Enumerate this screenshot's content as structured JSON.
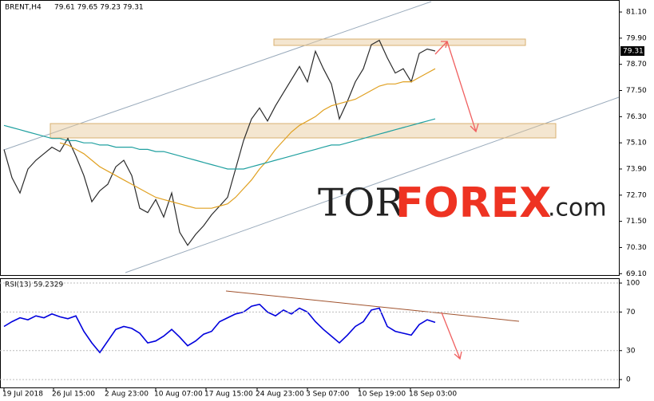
{
  "chart_data": [
    {
      "type": "line",
      "title": "BRENT,H4",
      "subtitle": "79.61 79.65 79.23 79.31",
      "price_label": "79.31",
      "watermark": [
        "TOR",
        "FOREX",
        ".com"
      ],
      "x": [
        0,
        1,
        2,
        3,
        4,
        5,
        6,
        7,
        8,
        9,
        10,
        11,
        12,
        13,
        14,
        15,
        16,
        17,
        18,
        19,
        20,
        21,
        22,
        23,
        24,
        25,
        26,
        27,
        28,
        29,
        30,
        31,
        32,
        33,
        34,
        35,
        36,
        37,
        38,
        39,
        40,
        41,
        42,
        43,
        44,
        45,
        46,
        47,
        48,
        49,
        50,
        51,
        52,
        53,
        54
      ],
      "xlim": [
        -0.5,
        77
      ],
      "ylim": [
        69.0,
        81.65
      ],
      "yticks": [
        {
          "value": 81.1,
          "label": "81.10"
        },
        {
          "value": 79.9,
          "label": "79.90"
        },
        {
          "value": 78.7,
          "label": "78.70"
        },
        {
          "value": 77.5,
          "label": "77.50"
        },
        {
          "value": 76.3,
          "label": "76.30"
        },
        {
          "value": 75.1,
          "label": "75.10"
        },
        {
          "value": 73.9,
          "label": "73.90"
        },
        {
          "value": 72.7,
          "label": "72.70"
        },
        {
          "value": 71.5,
          "label": "71.50"
        },
        {
          "value": 70.3,
          "label": "70.30"
        },
        {
          "value": 69.1,
          "label": "69.10"
        }
      ],
      "series": [
        {
          "color": "#2a2a2a",
          "values": [
            74.8,
            73.5,
            72.8,
            73.9,
            74.3,
            74.6,
            74.9,
            74.7,
            75.3,
            74.5,
            73.6,
            72.4,
            72.9,
            73.2,
            74.0,
            74.3,
            73.6,
            72.1,
            71.9,
            72.5,
            71.7,
            72.8,
            71.0,
            70.4,
            70.9,
            71.3,
            71.8,
            72.2,
            72.6,
            73.9,
            75.2,
            76.2,
            76.7,
            76.1,
            76.8,
            77.4,
            78.0,
            78.6,
            77.9,
            79.3,
            78.5,
            77.8,
            76.2,
            77.0,
            77.9,
            78.5,
            79.6,
            79.8,
            79.0,
            78.3,
            78.5,
            77.9,
            79.2,
            79.4,
            79.31
          ]
        },
        {
          "color": "#e0a020",
          "values": [
            null,
            null,
            null,
            null,
            null,
            null,
            null,
            75.1,
            75.0,
            74.8,
            74.6,
            74.3,
            74.0,
            73.8,
            73.6,
            73.4,
            73.2,
            73.0,
            72.8,
            72.6,
            72.5,
            72.4,
            72.3,
            72.2,
            72.1,
            72.1,
            72.1,
            72.2,
            72.3,
            72.6,
            73.0,
            73.4,
            73.9,
            74.3,
            74.8,
            75.2,
            75.6,
            75.9,
            76.1,
            76.3,
            76.6,
            76.8,
            76.9,
            77.0,
            77.1,
            77.3,
            77.5,
            77.7,
            77.8,
            77.8,
            77.9,
            77.9,
            78.1,
            78.3,
            78.5
          ]
        },
        {
          "color": "#20a0a0",
          "values": [
            75.9,
            75.8,
            75.7,
            75.6,
            75.5,
            75.4,
            75.3,
            75.3,
            75.2,
            75.2,
            75.1,
            75.1,
            75.0,
            75.0,
            74.9,
            74.9,
            74.9,
            74.8,
            74.8,
            74.7,
            74.7,
            74.6,
            74.5,
            74.4,
            74.3,
            74.2,
            74.1,
            74.0,
            73.9,
            73.9,
            73.9,
            74.0,
            74.1,
            74.2,
            74.3,
            74.4,
            74.5,
            74.6,
            74.7,
            74.8,
            74.9,
            75.0,
            75.0,
            75.1,
            75.2,
            75.3,
            75.4,
            75.5,
            75.6,
            75.7,
            75.8,
            75.9,
            76.0,
            76.1,
            76.2
          ]
        }
      ]
    },
    {
      "type": "line",
      "title": "RSI(13) 59.2329",
      "x": [
        0,
        1,
        2,
        3,
        4,
        5,
        6,
        7,
        8,
        9,
        10,
        11,
        12,
        13,
        14,
        15,
        16,
        17,
        18,
        19,
        20,
        21,
        22,
        23,
        24,
        25,
        26,
        27,
        28,
        29,
        30,
        31,
        32,
        33,
        34,
        35,
        36,
        37,
        38,
        39,
        40,
        41,
        42,
        43,
        44,
        45,
        46,
        47,
        48,
        49,
        50,
        51,
        52,
        53,
        54
      ],
      "xlim": [
        -0.5,
        77
      ],
      "ylim": [
        -9,
        105
      ],
      "yticks": [
        100,
        70,
        30,
        0
      ],
      "xticks": [
        {
          "value": 0,
          "label": "19 Jul 2018"
        },
        {
          "value": 6.2,
          "label": "26 Jul 15:00"
        },
        {
          "value": 12.8,
          "label": "2 Aug 23:00"
        },
        {
          "value": 19,
          "label": "10 Aug 07:00"
        },
        {
          "value": 25.3,
          "label": "17 Aug 15:00"
        },
        {
          "value": 31.7,
          "label": "24 Aug 23:00"
        },
        {
          "value": 38,
          "label": "3 Sep 07:00"
        },
        {
          "value": 44.5,
          "label": "10 Sep 19:00"
        },
        {
          "value": 50.9,
          "label": "18 Sep 03:00"
        }
      ],
      "series": [
        {
          "color": "#0000dd",
          "values": [
            55,
            60,
            64,
            62,
            66,
            64,
            68,
            65,
            63,
            66,
            50,
            38,
            28,
            40,
            52,
            55,
            53,
            48,
            38,
            40,
            45,
            52,
            44,
            35,
            40,
            47,
            50,
            60,
            64,
            68,
            70,
            76,
            78,
            70,
            66,
            72,
            68,
            74,
            70,
            60,
            52,
            45,
            38,
            46,
            55,
            60,
            72,
            74,
            55,
            50,
            48,
            46,
            57,
            62,
            59.2329
          ]
        }
      ]
    }
  ]
}
